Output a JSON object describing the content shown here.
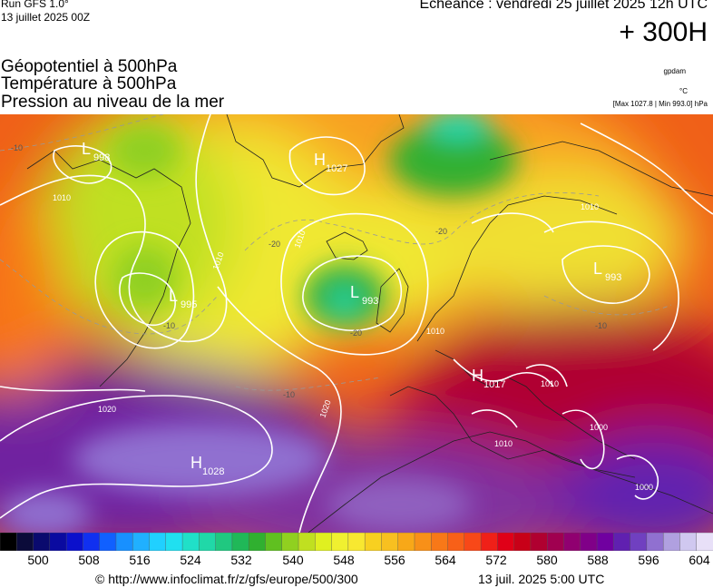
{
  "header": {
    "run": "Run GFS 1.0°",
    "run_date": "13 juillet 2025 00Z",
    "echeance": "Echéance : vendredi 25 juillet 2025 12h UTC",
    "lead": "+ 300H",
    "title_line1": "Géopotentiel à 500hPa",
    "title_line2": "Température à 500hPa",
    "title_line3": "Pression au niveau de la mer",
    "unit_gpdam": "gpdam",
    "unit_degc": "°C",
    "maxmin": "[Max 1027.8 | Min 993.0] hPa"
  },
  "footer": {
    "credit": "© http://www.infoclimat.fr/z/gfs/europe/500/300",
    "timestamp": "13 juil. 2025  5:00 UTC"
  },
  "chart_data": {
    "type": "heatmap",
    "colorbar": {
      "ticks": [
        "500",
        "508",
        "516",
        "524",
        "532",
        "540",
        "548",
        "556",
        "564",
        "572",
        "580",
        "588",
        "596",
        "604"
      ],
      "colors": [
        "#000000",
        "#0b0b3a",
        "#0a0a6e",
        "#0a0aa0",
        "#0b10cc",
        "#1030f0",
        "#1060ff",
        "#1890ff",
        "#20b0ff",
        "#20d0ff",
        "#20e0f0",
        "#20e0c8",
        "#20d8a8",
        "#20c880",
        "#20b858",
        "#30b030",
        "#60c020",
        "#90d020",
        "#c0e020",
        "#e0f020",
        "#f0f030",
        "#f8e830",
        "#f8d020",
        "#f8c020",
        "#f8a818",
        "#f89018",
        "#f87818",
        "#f86018",
        "#f84818",
        "#f02018",
        "#e00018",
        "#c80018",
        "#b00030",
        "#a00050",
        "#900070",
        "#800088",
        "#7000a0",
        "#6020b0",
        "#7040c0",
        "#9070d0",
        "#b0a0e0",
        "#d0c8f0",
        "#e8e0f8"
      ]
    },
    "pressure_centers": [
      {
        "type": "L",
        "value": "998"
      },
      {
        "type": "H",
        "value": "1027"
      },
      {
        "type": "L",
        "value": "995"
      },
      {
        "type": "L",
        "value": "993"
      },
      {
        "type": "L",
        "value": "993"
      },
      {
        "type": "H",
        "value": "1017"
      },
      {
        "type": "H",
        "value": "1028"
      }
    ],
    "isobar_labels": [
      "1010",
      "1010",
      "1010",
      "1010",
      "1010",
      "1010",
      "1020",
      "1020",
      "1000",
      "1000",
      "1010"
    ],
    "temperature_labels": [
      "-10",
      "-10",
      "-20",
      "-20",
      "-20",
      "-10",
      "-10"
    ]
  }
}
